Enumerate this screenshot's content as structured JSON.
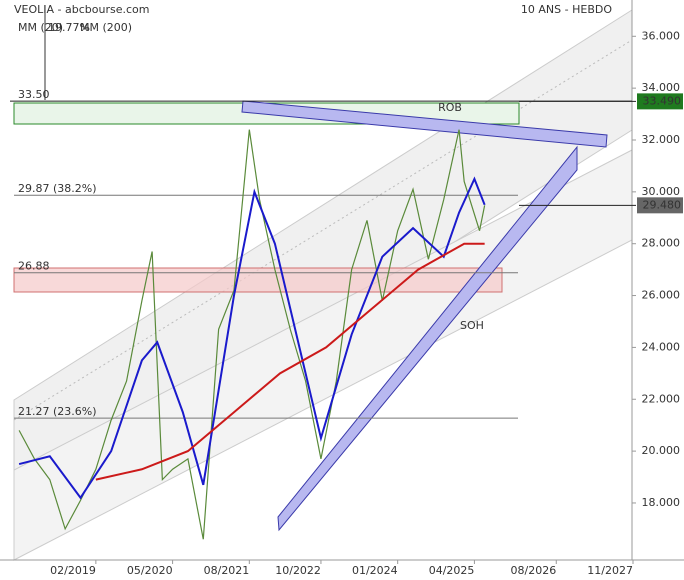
{
  "chart_data": {
    "type": "line",
    "title": "VEOLIA - abcbourse.com",
    "subtitle": "10 ANS - HEBDO",
    "xlim": [
      "10/2017",
      "11/2027"
    ],
    "xticks": [
      "02/2019",
      "05/2020",
      "08/2021",
      "10/2022",
      "01/2024",
      "04/2025",
      "08/2026",
      "11/2027"
    ],
    "ylim": [
      15.8,
      37.4
    ],
    "yticks": [
      {
        "value": 18,
        "label": "18.000"
      },
      {
        "value": 20,
        "label": "20.000"
      },
      {
        "value": 22,
        "label": "22.000"
      },
      {
        "value": 24,
        "label": "24.000"
      },
      {
        "value": 26,
        "label": "26.000"
      },
      {
        "value": 28,
        "label": "28.000"
      },
      {
        "value": 30,
        "label": "30.000"
      },
      {
        "value": 32,
        "label": "32.000"
      },
      {
        "value": 34,
        "label": "34.000"
      },
      {
        "value": 36,
        "label": "36.000"
      }
    ],
    "grid": false,
    "series": [
      {
        "color": "#5a8a3a",
        "x": [
          "11/2017",
          "02/2018",
          "05/2018",
          "08/2018",
          "11/2018",
          "02/2019",
          "05/2019",
          "08/2019",
          "11/2019",
          "01/2020",
          "03/2020",
          "05/2020",
          "08/2020",
          "11/2020",
          "02/2021",
          "05/2021",
          "08/2021",
          "10/2021",
          "01/2022",
          "04/2022",
          "07/2022",
          "10/2022",
          "01/2023",
          "04/2023",
          "07/2023",
          "10/2023",
          "01/2024",
          "04/2024",
          "07/2024",
          "10/2024",
          "01/2025",
          "02/2025",
          "05/2025",
          "06/2025"
        ],
        "values": [
          20.8,
          19.7,
          18.9,
          17.0,
          18.1,
          19.3,
          21.2,
          22.7,
          25.8,
          27.7,
          18.9,
          19.3,
          19.7,
          16.6,
          24.7,
          26.2,
          32.4,
          29.7,
          27.0,
          24.7,
          22.7,
          19.7,
          22.7,
          27.0,
          28.9,
          25.8,
          28.5,
          30.1,
          27.4,
          29.7,
          32.4,
          30.4,
          28.5,
          29.48
        ]
      },
      {
        "name": "MM (20)",
        "color": "#1a1acc",
        "x": [
          "11/2017",
          "05/2018",
          "11/2018",
          "05/2019",
          "11/2019",
          "02/2020",
          "07/2020",
          "11/2020",
          "05/2021",
          "09/2021",
          "01/2022",
          "07/2022",
          "10/2022",
          "04/2023",
          "10/2023",
          "04/2024",
          "10/2024",
          "01/2025",
          "04/2025",
          "06/2025"
        ],
        "values": [
          19.5,
          19.8,
          18.2,
          20.0,
          23.5,
          24.2,
          21.5,
          18.7,
          26.0,
          30.0,
          28.0,
          23.0,
          20.5,
          24.5,
          27.5,
          28.6,
          27.5,
          29.2,
          30.5,
          29.5
        ]
      },
      {
        "name": "MM (200)",
        "color": "#cc1a1a",
        "x": [
          "02/2019",
          "11/2019",
          "08/2020",
          "05/2021",
          "02/2022",
          "11/2022",
          "08/2023",
          "05/2024",
          "02/2025",
          "06/2025"
        ],
        "values": [
          18.9,
          19.3,
          20.0,
          21.5,
          23.0,
          24.0,
          25.5,
          27.0,
          28.0,
          28.0
        ]
      }
    ],
    "legend_extra": "19.77%",
    "levels": [
      {
        "value": 33.5,
        "label": "33.50"
      },
      {
        "value": 29.87,
        "label": "29.87  (38.2%)"
      },
      {
        "value": 26.88,
        "label": "26.88"
      },
      {
        "value": 21.27,
        "label": "21.27  (23.6%)"
      }
    ],
    "resistance": {
      "value": 33.49,
      "label": "33.490"
    },
    "last_price": {
      "value": 29.48,
      "label": "29.480"
    },
    "annotations": [
      "ROB",
      "SOH"
    ]
  }
}
